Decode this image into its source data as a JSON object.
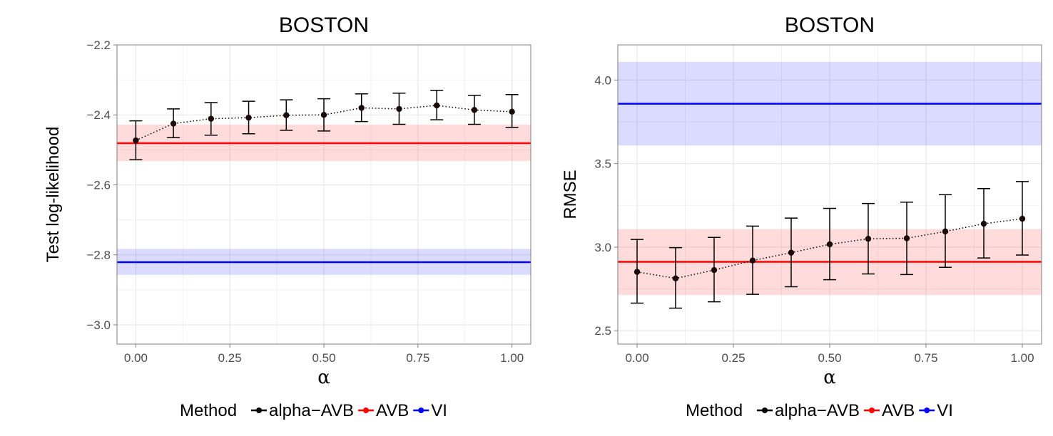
{
  "legend": {
    "title": "Method",
    "entries": [
      {
        "label": "alpha−AVB",
        "color": "#000000"
      },
      {
        "label": "AVB",
        "color": "#ff0000"
      },
      {
        "label": "VI",
        "color": "#0000ff"
      }
    ]
  },
  "chart_data": [
    {
      "type": "line",
      "title": "BOSTON",
      "xlabel": "α",
      "ylabel": "Test log-likelihood",
      "xlim": [
        -0.05,
        1.05
      ],
      "ylim": [
        -3.055,
        -2.2
      ],
      "xticks": [
        "0.00",
        "0.25",
        "0.50",
        "0.75",
        "1.00"
      ],
      "yticks": [
        "−2.2",
        "−2.4",
        "−2.6",
        "−2.8",
        "−3.0"
      ],
      "ytick_values": [
        -2.2,
        -2.4,
        -2.6,
        -2.8,
        -3.0
      ],
      "grid": true,
      "legend_position": "bottom",
      "series": [
        {
          "name": "alpha−AVB",
          "color": "#000000",
          "x": [
            0.0,
            0.1,
            0.2,
            0.3,
            0.4,
            0.5,
            0.6,
            0.7,
            0.8,
            0.9,
            1.0
          ],
          "y": [
            -2.473,
            -2.425,
            -2.411,
            -2.408,
            -2.401,
            -2.4,
            -2.38,
            -2.383,
            -2.373,
            -2.386,
            -2.391
          ],
          "err_low": [
            -2.528,
            -2.465,
            -2.458,
            -2.454,
            -2.444,
            -2.446,
            -2.419,
            -2.427,
            -2.414,
            -2.427,
            -2.436
          ],
          "err_high": [
            -2.417,
            -2.383,
            -2.365,
            -2.361,
            -2.357,
            -2.354,
            -2.34,
            -2.338,
            -2.33,
            -2.344,
            -2.342
          ]
        }
      ],
      "bands": [
        {
          "name": "AVB",
          "color": "#ff0000",
          "value": -2.481,
          "low": -2.532,
          "high": -2.428
        },
        {
          "name": "VI",
          "color": "#0000ff",
          "value": -2.821,
          "low": -2.857,
          "high": -2.783
        }
      ]
    },
    {
      "type": "line",
      "title": "BOSTON",
      "xlabel": "α",
      "ylabel": "RMSE",
      "xlim": [
        -0.05,
        1.05
      ],
      "ylim": [
        2.42,
        4.21
      ],
      "xticks": [
        "0.00",
        "0.25",
        "0.50",
        "0.75",
        "1.00"
      ],
      "yticks": [
        "2.5",
        "3.0",
        "3.5",
        "4.0"
      ],
      "ytick_values": [
        2.5,
        3.0,
        3.5,
        4.0
      ],
      "grid": true,
      "legend_position": "bottom",
      "series": [
        {
          "name": "alpha−AVB",
          "color": "#000000",
          "x": [
            0.0,
            0.1,
            0.2,
            0.3,
            0.4,
            0.5,
            0.6,
            0.7,
            0.8,
            0.9,
            1.0
          ],
          "y": [
            2.852,
            2.813,
            2.863,
            2.92,
            2.967,
            3.017,
            3.05,
            3.053,
            3.094,
            3.14,
            3.17
          ],
          "err_low": [
            2.665,
            2.635,
            2.673,
            2.718,
            2.763,
            2.805,
            2.84,
            2.836,
            2.879,
            2.935,
            2.953
          ],
          "err_high": [
            3.046,
            2.997,
            3.058,
            3.126,
            3.174,
            3.232,
            3.261,
            3.269,
            3.314,
            3.35,
            3.392
          ]
        }
      ],
      "bands": [
        {
          "name": "AVB",
          "color": "#ff0000",
          "value": 2.912,
          "low": 2.714,
          "high": 3.108
        },
        {
          "name": "VI",
          "color": "#0000ff",
          "value": 3.858,
          "low": 3.608,
          "high": 4.108
        }
      ]
    }
  ]
}
